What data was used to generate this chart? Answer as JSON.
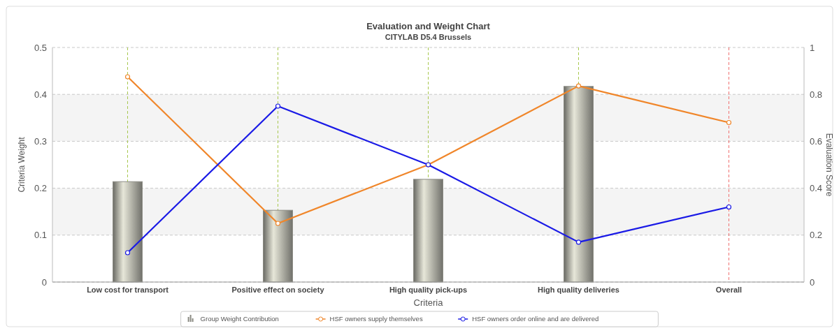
{
  "chart_data": {
    "type": "bar",
    "title": "Evaluation and Weight Chart",
    "subtitle": "CITYLAB D5.4 Brussels",
    "xlabel": "Criteria",
    "ylabel": "Criteria Weight",
    "y2label": "Evaluation Score",
    "categories": [
      "Low cost for transport",
      "Positive effect on society",
      "High quality pick-ups",
      "High quality deliveries",
      "Overall"
    ],
    "series": [
      {
        "name": "Group Weight Contribution",
        "color": "#8c8c84",
        "values": [
          0.214,
          0.153,
          0.219,
          0.417,
          null
        ]
      },
      {
        "name": "HSF owners supply themselves",
        "type": "line",
        "axis": "y2",
        "color": "#f0862a",
        "values": [
          0.875,
          0.25,
          0.5,
          0.836,
          0.68
        ]
      },
      {
        "name": "HSF owners order online and are delivered",
        "type": "line",
        "axis": "y2",
        "color": "#1a1ae6",
        "values": [
          0.125,
          0.75,
          0.5,
          0.17,
          0.32
        ]
      }
    ],
    "ylim": [
      0,
      0.5
    ],
    "yticks": [
      0,
      0.1,
      0.2,
      0.3,
      0.4,
      0.5
    ],
    "y2lim": [
      0,
      1
    ],
    "y2ticks": [
      0,
      0.2,
      0.4,
      0.6,
      0.8,
      1
    ],
    "ref_lines": [
      {
        "axis": "x",
        "value": "Low cost for transport",
        "color": "#a8c850",
        "line_style": "dashed"
      },
      {
        "axis": "x",
        "value": "Positive effect on society",
        "color": "#a8c850",
        "line_style": "dashed"
      },
      {
        "axis": "x",
        "value": "High quality pick-ups",
        "color": "#a8c850",
        "line_style": "dashed"
      },
      {
        "axis": "x",
        "value": "High quality deliveries",
        "color": "#a8c850",
        "line_style": "dashed"
      },
      {
        "axis": "x",
        "value": "Overall",
        "color": "#f07070",
        "line_style": "dashed"
      }
    ],
    "grid": "y",
    "legend": "bottom",
    "marker": "circle"
  }
}
